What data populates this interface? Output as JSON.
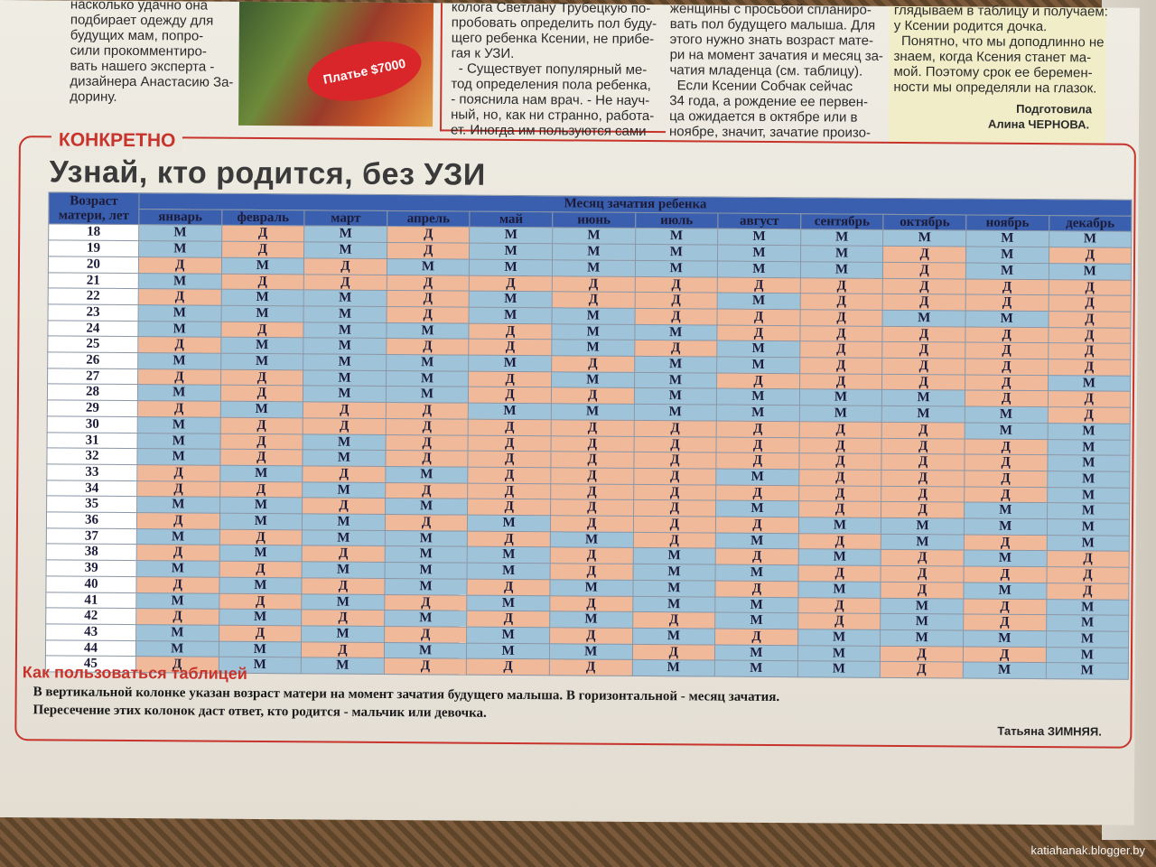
{
  "top": {
    "col1": [
      "насколько удачно она",
      "подбирает одежду для",
      "будущих мам, попро-",
      "сили прокомментиро-",
      "вать нашего эксперта -",
      "дизайнера Анастасию За-",
      "дорину."
    ],
    "price_tag": "Платье $7000",
    "col2": [
      "колога Светлану Трубецкую по-",
      "пробовать определить пол буду-",
      "щего ребенка Ксении, не прибе-",
      "гая к УЗИ.",
      "  - Существует популярный ме-",
      "тод определения пола ребенка,",
      "- пояснила нам врач. - Не науч-",
      "ный, но, как ни странно, работа-",
      "ет. Иногда им пользуются сами"
    ],
    "col3": [
      "женщины с просьбой спланиро-",
      "вать пол будущего малыша. Для",
      "этого нужно знать возраст мате-",
      "ри на момент зачатия и месяц за-",
      "чатия младенца (см. таблицу).",
      "  Если Ксении Собчак сейчас",
      "34 года, а рождение ее первен-",
      "ца ожидается в октябре или в",
      "ноябре, значит, зачатие произо-"
    ],
    "col4": [
      "глядываем в таблицу и получаем:",
      "у Ксении родится дочка.",
      "  Понятно, что мы доподлинно не",
      "знаем, когда Ксения станет ма-",
      "мой. Поэтому срок ее беремен-",
      "ности мы определяли на глазок."
    ],
    "credit1": "Подготовила",
    "credit2": "Алина ЧЕРНОВА."
  },
  "section": {
    "kicker": "КОНКРЕТНО",
    "headline": "Узнай, кто родится, без УЗИ"
  },
  "table": {
    "corner": "Возраст матери, лет",
    "banner": "Месяц зачатия ребенка",
    "months": [
      "январь",
      "февраль",
      "март",
      "апрель",
      "май",
      "июнь",
      "июль",
      "август",
      "сентябрь",
      "октябрь",
      "ноябрь",
      "декабрь"
    ],
    "rows": [
      {
        "age": "18",
        "v": [
          "М",
          "Д",
          "М",
          "Д",
          "М",
          "М",
          "М",
          "М",
          "М",
          "М",
          "М",
          "М"
        ]
      },
      {
        "age": "19",
        "v": [
          "М",
          "Д",
          "М",
          "Д",
          "М",
          "М",
          "М",
          "М",
          "М",
          "Д",
          "М",
          "Д"
        ]
      },
      {
        "age": "20",
        "v": [
          "Д",
          "М",
          "Д",
          "М",
          "М",
          "М",
          "М",
          "М",
          "М",
          "Д",
          "М",
          "М"
        ]
      },
      {
        "age": "21",
        "v": [
          "М",
          "Д",
          "Д",
          "Д",
          "Д",
          "Д",
          "Д",
          "Д",
          "Д",
          "Д",
          "Д",
          "Д"
        ]
      },
      {
        "age": "22",
        "v": [
          "Д",
          "М",
          "М",
          "Д",
          "М",
          "Д",
          "Д",
          "М",
          "Д",
          "Д",
          "Д",
          "Д"
        ]
      },
      {
        "age": "23",
        "v": [
          "М",
          "М",
          "М",
          "Д",
          "М",
          "М",
          "Д",
          "Д",
          "Д",
          "М",
          "М",
          "Д"
        ]
      },
      {
        "age": "24",
        "v": [
          "М",
          "Д",
          "М",
          "М",
          "Д",
          "М",
          "М",
          "Д",
          "Д",
          "Д",
          "Д",
          "Д"
        ]
      },
      {
        "age": "25",
        "v": [
          "Д",
          "М",
          "М",
          "Д",
          "Д",
          "М",
          "Д",
          "М",
          "Д",
          "Д",
          "Д",
          "Д"
        ]
      },
      {
        "age": "26",
        "v": [
          "М",
          "М",
          "М",
          "М",
          "М",
          "Д",
          "М",
          "М",
          "Д",
          "Д",
          "Д",
          "Д"
        ]
      },
      {
        "age": "27",
        "v": [
          "Д",
          "Д",
          "М",
          "М",
          "Д",
          "М",
          "М",
          "Д",
          "Д",
          "Д",
          "Д",
          "М"
        ]
      },
      {
        "age": "28",
        "v": [
          "М",
          "Д",
          "М",
          "М",
          "Д",
          "Д",
          "М",
          "М",
          "М",
          "М",
          "Д",
          "Д"
        ]
      },
      {
        "age": "29",
        "v": [
          "Д",
          "М",
          "Д",
          "Д",
          "М",
          "М",
          "М",
          "М",
          "М",
          "М",
          "М",
          "Д"
        ]
      },
      {
        "age": "30",
        "v": [
          "М",
          "Д",
          "Д",
          "Д",
          "Д",
          "Д",
          "Д",
          "Д",
          "Д",
          "Д",
          "М",
          "М"
        ]
      },
      {
        "age": "31",
        "v": [
          "М",
          "Д",
          "М",
          "Д",
          "Д",
          "Д",
          "Д",
          "Д",
          "Д",
          "Д",
          "Д",
          "М"
        ]
      },
      {
        "age": "32",
        "v": [
          "М",
          "Д",
          "М",
          "Д",
          "Д",
          "Д",
          "Д",
          "Д",
          "Д",
          "Д",
          "Д",
          "М"
        ]
      },
      {
        "age": "33",
        "v": [
          "Д",
          "М",
          "Д",
          "М",
          "Д",
          "Д",
          "Д",
          "М",
          "Д",
          "Д",
          "Д",
          "М"
        ]
      },
      {
        "age": "34",
        "v": [
          "Д",
          "Д",
          "М",
          "Д",
          "Д",
          "Д",
          "Д",
          "Д",
          "Д",
          "Д",
          "Д",
          "М"
        ]
      },
      {
        "age": "35",
        "v": [
          "М",
          "М",
          "Д",
          "М",
          "Д",
          "Д",
          "Д",
          "М",
          "Д",
          "Д",
          "М",
          "М"
        ]
      },
      {
        "age": "36",
        "v": [
          "Д",
          "М",
          "М",
          "Д",
          "М",
          "Д",
          "Д",
          "Д",
          "М",
          "М",
          "М",
          "М"
        ]
      },
      {
        "age": "37",
        "v": [
          "М",
          "Д",
          "М",
          "М",
          "Д",
          "М",
          "Д",
          "М",
          "Д",
          "М",
          "Д",
          "М"
        ]
      },
      {
        "age": "38",
        "v": [
          "Д",
          "М",
          "Д",
          "М",
          "М",
          "Д",
          "М",
          "Д",
          "М",
          "Д",
          "М",
          "Д"
        ]
      },
      {
        "age": "39",
        "v": [
          "М",
          "Д",
          "М",
          "М",
          "М",
          "Д",
          "М",
          "М",
          "Д",
          "Д",
          "Д",
          "Д"
        ]
      },
      {
        "age": "40",
        "v": [
          "Д",
          "М",
          "Д",
          "М",
          "Д",
          "М",
          "М",
          "Д",
          "М",
          "Д",
          "М",
          "Д"
        ]
      },
      {
        "age": "41",
        "v": [
          "М",
          "Д",
          "М",
          "Д",
          "М",
          "Д",
          "М",
          "М",
          "Д",
          "М",
          "Д",
          "М"
        ]
      },
      {
        "age": "42",
        "v": [
          "Д",
          "М",
          "Д",
          "М",
          "Д",
          "М",
          "Д",
          "М",
          "Д",
          "М",
          "Д",
          "М"
        ]
      },
      {
        "age": "43",
        "v": [
          "М",
          "Д",
          "М",
          "Д",
          "М",
          "Д",
          "М",
          "Д",
          "М",
          "М",
          "М",
          "М"
        ]
      },
      {
        "age": "44",
        "v": [
          "М",
          "М",
          "Д",
          "М",
          "М",
          "М",
          "Д",
          "М",
          "М",
          "Д",
          "Д",
          "М"
        ]
      },
      {
        "age": "45",
        "v": [
          "Д",
          "М",
          "М",
          "Д",
          "Д",
          "Д",
          "М",
          "М",
          "М",
          "Д",
          "М",
          "М"
        ]
      }
    ]
  },
  "howto": {
    "title": "Как пользоваться таблицей",
    "line1": "В вертикальной колонке указан возраст матери на момент зачатия будущего малыша. В горизонтальной - месяц зачатия.",
    "line2": "Пересечение этих колонок даст ответ, кто родится - мальчик или девочка."
  },
  "author": "Татьяна ЗИМНЯЯ.",
  "watermark": "katiahanak.blogger.by",
  "colors": {
    "accent_red": "#c8342c",
    "header_blue": "#3a5fae",
    "banner_yellow": "#f2d34a",
    "boy_blue": "#9fc3d8",
    "girl_peach": "#f0b99a"
  }
}
